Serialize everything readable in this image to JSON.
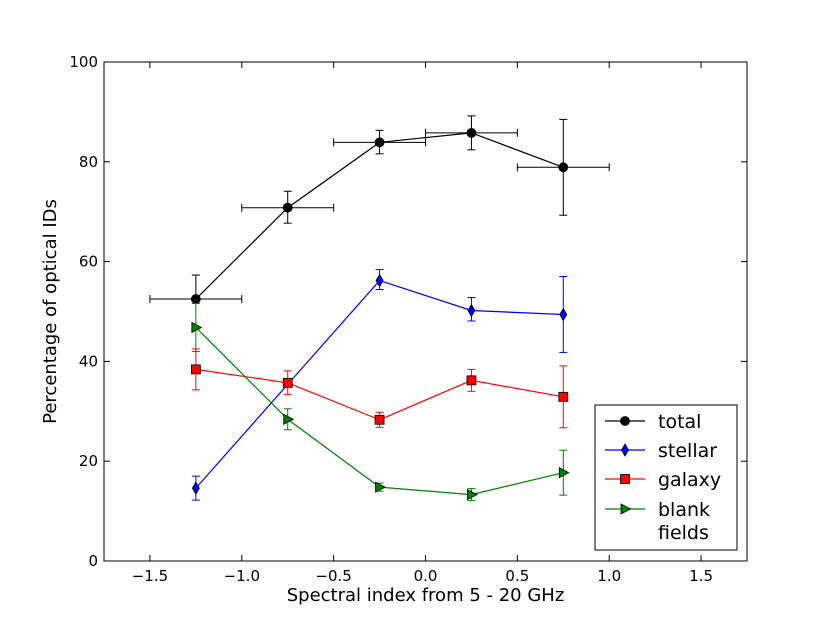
{
  "chart_data": {
    "type": "line",
    "title": "",
    "xlabel": "Spectral index from 5 - 20 GHz",
    "ylabel": "Percentage of optical IDs",
    "xlim": [
      -1.75,
      1.75
    ],
    "ylim": [
      0,
      100
    ],
    "xticks": [
      -1.5,
      -1.0,
      -0.5,
      0.0,
      0.5,
      1.0,
      1.5
    ],
    "xtick_labels": [
      "−1.5",
      "−1.0",
      "−0.5",
      "0.0",
      "0.5",
      "1.0",
      "1.5"
    ],
    "yticks": [
      0,
      20,
      40,
      60,
      80,
      100
    ],
    "ytick_labels": [
      "0",
      "20",
      "40",
      "60",
      "80",
      "100"
    ],
    "grid": false,
    "legend_position": "bottom-right",
    "series": [
      {
        "name": "total",
        "color": "#000000",
        "marker": "circle",
        "x": [
          -1.25,
          -0.75,
          -0.25,
          0.25,
          0.75
        ],
        "y": [
          52.5,
          70.8,
          83.9,
          85.8,
          78.9
        ],
        "xerr": [
          0.25,
          0.25,
          0.25,
          0.25,
          0.25
        ],
        "yerr_low": [
          0,
          3.1,
          2.3,
          3.4,
          9.6
        ],
        "yerr_high": [
          4.8,
          3.3,
          2.4,
          3.4,
          9.6
        ]
      },
      {
        "name": "stellar",
        "color": "#0000ff",
        "marker": "thin-diamond",
        "x": [
          -1.25,
          -0.25,
          0.25,
          0.75
        ],
        "y": [
          14.6,
          56.2,
          50.2,
          49.4
        ],
        "yerr_low": [
          2.4,
          1.8,
          2.1,
          7.6
        ],
        "yerr_high": [
          2.4,
          2.2,
          2.6,
          7.6
        ]
      },
      {
        "name": "galaxy",
        "color": "#ff0000",
        "marker": "square",
        "x": [
          -1.25,
          -0.75,
          -0.25,
          0.25,
          0.75
        ],
        "y": [
          38.4,
          35.7,
          28.3,
          36.2,
          32.9
        ],
        "yerr_low": [
          4.1,
          2.3,
          1.5,
          2.2,
          6.2
        ],
        "yerr_high": [
          4.1,
          2.4,
          1.5,
          2.2,
          6.2
        ]
      },
      {
        "name": "blank\nfields",
        "color": "#008000",
        "marker": "triangle-right",
        "x": [
          -1.25,
          -0.75,
          -0.25,
          0.25,
          0.75
        ],
        "y": [
          46.8,
          28.4,
          14.8,
          13.3,
          17.7
        ],
        "yerr_low": [
          4.8,
          2.1,
          0.8,
          1.2,
          4.5
        ],
        "yerr_high": [
          4.8,
          2.1,
          0.8,
          1.2,
          4.5
        ]
      }
    ]
  }
}
